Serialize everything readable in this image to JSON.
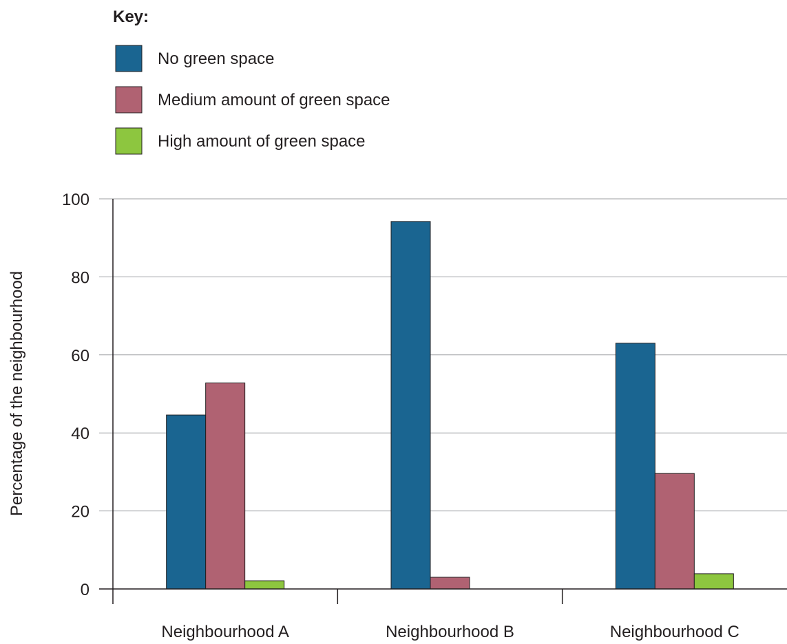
{
  "chart_data": {
    "type": "bar",
    "title": "",
    "xlabel": "",
    "ylabel": "Percentage of the neighbourhood",
    "ylim": [
      0,
      100
    ],
    "yticks": [
      0,
      20,
      40,
      60,
      80,
      100
    ],
    "ytick_labels": [
      "0",
      "20",
      "40",
      "60",
      "80",
      "100"
    ],
    "grid": true,
    "legend_title": "Key:",
    "legend_position": "top-left",
    "categories": [
      "Neighbourhood A",
      "Neighbourhood B",
      "Neighbourhood C"
    ],
    "series": [
      {
        "name": "No green space",
        "color": "#1a6591",
        "values": [
          44.6,
          94.2,
          63
        ]
      },
      {
        "name": "Medium amount of green space",
        "color": "#b06272",
        "values": [
          52.8,
          3,
          29.6
        ]
      },
      {
        "name": "High amount of green space",
        "color": "#8dc63f",
        "values": [
          2.1,
          0,
          3.9
        ]
      }
    ]
  }
}
